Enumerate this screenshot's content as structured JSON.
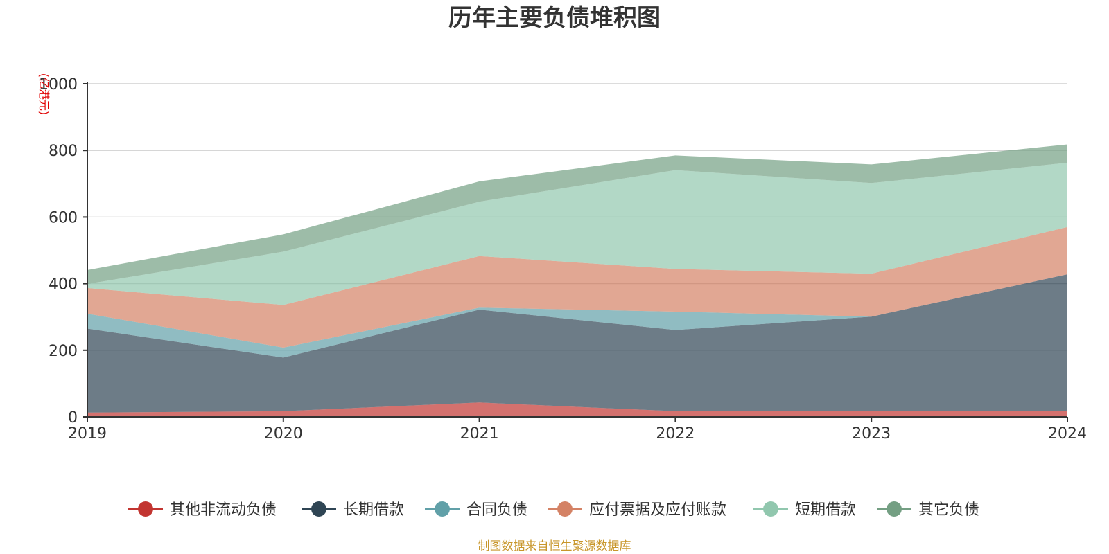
{
  "chart_data": {
    "type": "area",
    "title": "历年主要负债堆积图",
    "unit_label": "(亿港元)",
    "x": [
      "2019",
      "2020",
      "2021",
      "2022",
      "2023",
      "2024"
    ],
    "ylim": [
      0,
      1000
    ],
    "yticks": [
      "0",
      "200",
      "400",
      "600",
      "800",
      "1000"
    ],
    "grid": true,
    "stacked": true,
    "legend_position": "bottom",
    "series": [
      {
        "name": "其他非流动负债",
        "color": "#c23531",
        "values": [
          13,
          17,
          43,
          17,
          17,
          17
        ]
      },
      {
        "name": "长期借款",
        "color": "#2f4554",
        "values": [
          252,
          161,
          279,
          244,
          284,
          411
        ]
      },
      {
        "name": "合同负债",
        "color": "#61a0a8",
        "values": [
          45,
          30,
          6,
          55,
          0,
          0
        ]
      },
      {
        "name": "应付票据及应付账款",
        "color": "#d48265",
        "values": [
          77,
          128,
          155,
          128,
          129,
          142
        ]
      },
      {
        "name": "短期借款",
        "color": "#91c7ae",
        "values": [
          12,
          160,
          163,
          297,
          272,
          193
        ]
      },
      {
        "name": "其它负债",
        "color": "#749f83",
        "values": [
          42,
          52,
          61,
          44,
          56,
          55
        ]
      }
    ],
    "source": "制图数据来自恒生聚源数据库"
  }
}
